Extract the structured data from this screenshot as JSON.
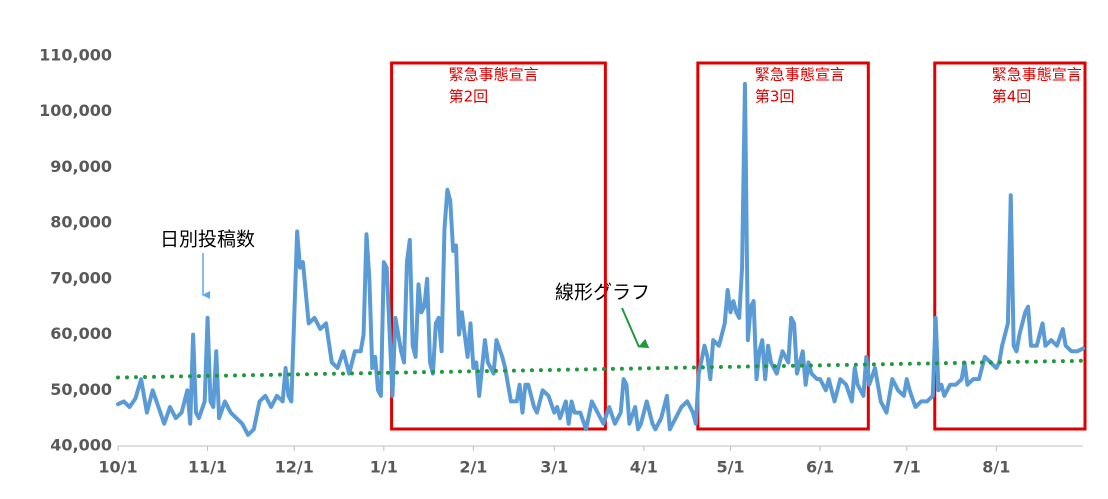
{
  "chart_data": {
    "type": "line",
    "annotations": [
      "日別投稿数",
      "線形グラフ"
    ],
    "xlim": [
      0,
      334
    ],
    "xticks": [
      {
        "value": 0,
        "label": "10/1"
      },
      {
        "value": 31,
        "label": "11/1"
      },
      {
        "value": 61,
        "label": "12/1"
      },
      {
        "value": 92,
        "label": "1/1"
      },
      {
        "value": 123,
        "label": "2/1"
      },
      {
        "value": 151,
        "label": "3/1"
      },
      {
        "value": 182,
        "label": "4/1"
      },
      {
        "value": 212,
        "label": "5/1"
      },
      {
        "value": 243,
        "label": "6/1"
      },
      {
        "value": 273,
        "label": "7/1"
      },
      {
        "value": 304,
        "label": "8/1"
      }
    ],
    "ylim": [
      40000,
      110000
    ],
    "yticks": [
      {
        "value": 40000,
        "label": "40,000"
      },
      {
        "value": 50000,
        "label": "50,000"
      },
      {
        "value": 60000,
        "label": "60,000"
      },
      {
        "value": 70000,
        "label": "70,000"
      },
      {
        "value": 80000,
        "label": "80,000"
      },
      {
        "value": 90000,
        "label": "90,000"
      },
      {
        "value": 100000,
        "label": "100,000"
      },
      {
        "value": 110000,
        "label": "110,000"
      }
    ],
    "grid": false,
    "periods": [
      {
        "label": "緊急事態宣言",
        "sublabel": "第2回",
        "start": 94,
        "end": 168
      },
      {
        "label": "緊急事態宣言",
        "sublabel": "第3回",
        "start": 200,
        "end": 259
      },
      {
        "label": "緊急事態宣言",
        "sublabel": "第4回",
        "start": 282,
        "end": 334
      }
    ],
    "series": [
      {
        "name": "日別投稿数",
        "color": "#5b9bd5",
        "x": [
          0,
          2,
          4,
          6,
          8,
          10,
          12,
          14,
          16,
          18,
          20,
          22,
          24,
          25,
          26,
          27,
          28,
          30,
          31,
          32,
          33,
          34,
          35,
          37,
          39,
          41,
          43,
          45,
          47,
          49,
          51,
          53,
          55,
          57,
          58,
          59,
          60,
          62,
          63,
          64,
          66,
          68,
          70,
          72,
          74,
          76,
          78,
          80,
          82,
          84,
          85,
          86,
          87,
          88,
          89,
          90,
          91,
          92,
          93,
          95,
          96,
          98,
          99,
          100,
          101,
          102,
          103,
          104,
          105,
          106,
          107,
          108,
          109,
          110,
          111,
          112,
          113,
          114,
          115,
          116,
          117,
          118,
          119,
          120,
          121,
          122,
          123,
          124,
          125,
          127,
          128,
          129,
          130,
          131,
          133,
          134,
          136,
          138,
          139,
          140,
          141,
          142,
          144,
          145,
          147,
          149,
          151,
          152,
          153,
          155,
          156,
          157,
          158,
          160,
          162,
          164,
          165,
          166,
          168,
          170,
          172,
          174,
          175,
          176,
          177,
          179,
          180,
          181,
          183,
          185,
          186,
          188,
          190,
          191,
          193,
          195,
          197,
          199,
          200,
          201,
          203,
          204,
          205,
          206,
          208,
          210,
          211,
          212,
          213,
          214,
          215,
          216,
          217,
          218,
          219,
          220,
          221,
          222,
          223,
          224,
          225,
          226,
          228,
          230,
          232,
          233,
          234,
          235,
          236,
          237,
          238,
          239,
          240,
          242,
          243,
          245,
          246,
          248,
          250,
          252,
          254,
          255,
          256,
          258,
          259,
          260,
          262,
          264,
          266,
          268,
          270,
          272,
          273,
          274,
          276,
          278,
          280,
          282,
          283,
          284,
          285,
          286,
          288,
          290,
          292,
          293,
          294,
          296,
          298,
          300,
          302,
          304,
          305,
          306,
          308,
          309,
          310,
          311,
          312,
          314,
          315,
          316,
          318,
          320,
          321,
          323,
          325,
          327,
          328,
          330,
          332,
          334
        ],
        "values": [
          47500,
          48000,
          47000,
          48500,
          52000,
          46000,
          50000,
          47000,
          44000,
          47000,
          45000,
          46000,
          50000,
          44000,
          60000,
          46000,
          45000,
          48000,
          63000,
          48000,
          47000,
          57000,
          45000,
          48000,
          46000,
          45000,
          44000,
          42000,
          43000,
          48000,
          49000,
          47000,
          49000,
          48000,
          54000,
          49000,
          48000,
          78500,
          72000,
          73000,
          62000,
          63000,
          61000,
          62000,
          55000,
          54000,
          57000,
          53000,
          57000,
          57000,
          60000,
          78000,
          70000,
          54000,
          56000,
          50000,
          49000,
          73000,
          72000,
          49000,
          63000,
          57000,
          55000,
          73000,
          77000,
          58000,
          56000,
          69000,
          64000,
          65000,
          70000,
          55000,
          53000,
          62000,
          63000,
          57000,
          79000,
          86000,
          84000,
          75000,
          76000,
          60000,
          64000,
          60000,
          56000,
          62000,
          54000,
          55000,
          49000,
          59000,
          55000,
          54000,
          53000,
          59000,
          56000,
          54000,
          48000,
          48000,
          51000,
          46000,
          51000,
          51000,
          47000,
          46000,
          50000,
          49000,
          46000,
          47000,
          45000,
          48000,
          44000,
          48000,
          46000,
          46000,
          43000,
          48000,
          47000,
          46000,
          44000,
          47000,
          44000,
          46000,
          52000,
          51000,
          44000,
          47000,
          43000,
          44000,
          48000,
          44000,
          43000,
          45000,
          49000,
          43000,
          45000,
          47000,
          48000,
          46000,
          44000,
          53000,
          58000,
          56000,
          52000,
          59000,
          58000,
          62000,
          68000,
          64000,
          66000,
          64000,
          63000,
          72000,
          105000,
          59000,
          65000,
          66000,
          52000,
          57000,
          59000,
          52000,
          58000,
          55000,
          53000,
          57000,
          55000,
          63000,
          62000,
          53000,
          55000,
          57000,
          51000,
          55000,
          53000,
          52000,
          52000,
          50000,
          52000,
          48000,
          52000,
          51000,
          48000,
          54000,
          51000,
          49000,
          56000,
          51000,
          54000,
          48000,
          46000,
          52000,
          50000,
          49000,
          52000,
          50000,
          47000,
          48000,
          48000,
          49000,
          63000,
          50000,
          51000,
          49000,
          51000,
          51000,
          52000,
          55000,
          51000,
          52000,
          52000,
          56000,
          55000,
          54000,
          55000,
          58000,
          62000,
          85000,
          58000,
          57000,
          60000,
          64000,
          65000,
          58000,
          58000,
          62000,
          58000,
          59000,
          58000,
          61000,
          58000,
          57000,
          57000,
          57500
        ]
      },
      {
        "name": "線形グラフ",
        "color": "#1e9a3c",
        "x": [
          0,
          334
        ],
        "values": [
          52300,
          55300
        ]
      }
    ]
  }
}
